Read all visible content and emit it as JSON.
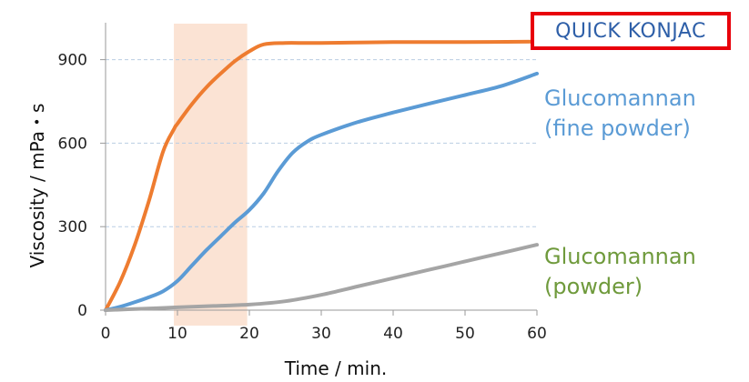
{
  "badge": {
    "text": "QUICK KONJAC",
    "border_color": "#e8000b",
    "text_color": "#2e5fa8"
  },
  "chart_data": {
    "type": "line",
    "xlabel": "Time / min.",
    "ylabel": "Viscosity / mPa・s",
    "xlim": [
      0,
      60
    ],
    "ylim": [
      0,
      1000
    ],
    "x_ticks": [
      0,
      10,
      20,
      30,
      40,
      50,
      60
    ],
    "y_ticks": [
      0,
      300,
      600,
      900
    ],
    "grid": "horizontal dashed",
    "highlight_band": {
      "x_start": 9.5,
      "x_end": 19.7,
      "color": "#fbe3d4"
    },
    "series": [
      {
        "name": "",
        "color": "#ee7c30",
        "points": [
          [
            0,
            0
          ],
          [
            2,
            100
          ],
          [
            4,
            230
          ],
          [
            6,
            390
          ],
          [
            8,
            570
          ],
          [
            9.5,
            650
          ],
          [
            10,
            670
          ],
          [
            12,
            740
          ],
          [
            14,
            800
          ],
          [
            16,
            850
          ],
          [
            18,
            895
          ],
          [
            20,
            930
          ],
          [
            22,
            955
          ],
          [
            25,
            960
          ],
          [
            30,
            960
          ],
          [
            40,
            963
          ],
          [
            50,
            963
          ],
          [
            60,
            965
          ]
        ]
      },
      {
        "name": "Glucomannan (fine powder)",
        "label_lines": [
          "Glucomannan",
          "(fine powder)"
        ],
        "color": "#5b9bd5",
        "points": [
          [
            0,
            0
          ],
          [
            2,
            12
          ],
          [
            4,
            28
          ],
          [
            6,
            46
          ],
          [
            8,
            68
          ],
          [
            10,
            105
          ],
          [
            12,
            160
          ],
          [
            14,
            215
          ],
          [
            16,
            265
          ],
          [
            18,
            315
          ],
          [
            20,
            360
          ],
          [
            22,
            420
          ],
          [
            24,
            500
          ],
          [
            26,
            565
          ],
          [
            28,
            605
          ],
          [
            30,
            630
          ],
          [
            35,
            675
          ],
          [
            40,
            710
          ],
          [
            45,
            742
          ],
          [
            50,
            773
          ],
          [
            55,
            805
          ],
          [
            60,
            850
          ]
        ]
      },
      {
        "name": "Glucomannan (powder)",
        "label_lines": [
          "Glucomannan",
          "(powder)"
        ],
        "color": "#a5a5a5",
        "points": [
          [
            0,
            0
          ],
          [
            5,
            5
          ],
          [
            10,
            10
          ],
          [
            15,
            15
          ],
          [
            20,
            20
          ],
          [
            25,
            32
          ],
          [
            30,
            55
          ],
          [
            35,
            85
          ],
          [
            40,
            115
          ],
          [
            45,
            145
          ],
          [
            50,
            175
          ],
          [
            55,
            205
          ],
          [
            60,
            235
          ]
        ]
      }
    ],
    "series_label_color": "#6f9a3c"
  }
}
